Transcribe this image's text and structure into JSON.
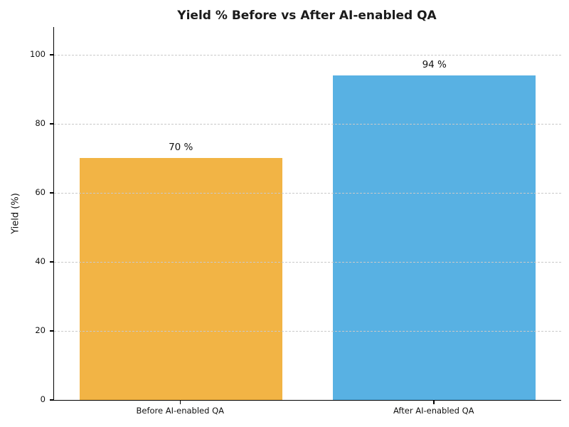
{
  "figure": {
    "background": "#ffffff",
    "title_color": "#1b1b1b",
    "text_color": "#111111",
    "spine_color": "#000000",
    "grid_color": "#c9c9c9"
  },
  "chart_data": {
    "type": "bar",
    "title": "Yield % Before vs After AI-enabled QA",
    "xlabel": "",
    "ylabel": "Yield (%)",
    "categories": [
      "Before AI-enabled QA",
      "After AI-enabled QA"
    ],
    "values": [
      70,
      94
    ],
    "bar_labels": [
      "70 %",
      "94 %"
    ],
    "bar_colors": [
      "#F2B445",
      "#58B1E3"
    ],
    "yticks": [
      0,
      20,
      40,
      60,
      80,
      100
    ],
    "ylim": [
      0,
      108
    ],
    "grid": "horizontal-dashed",
    "gridlines_above_bars": true,
    "legend": "none",
    "bar_width_fraction": 0.4
  }
}
